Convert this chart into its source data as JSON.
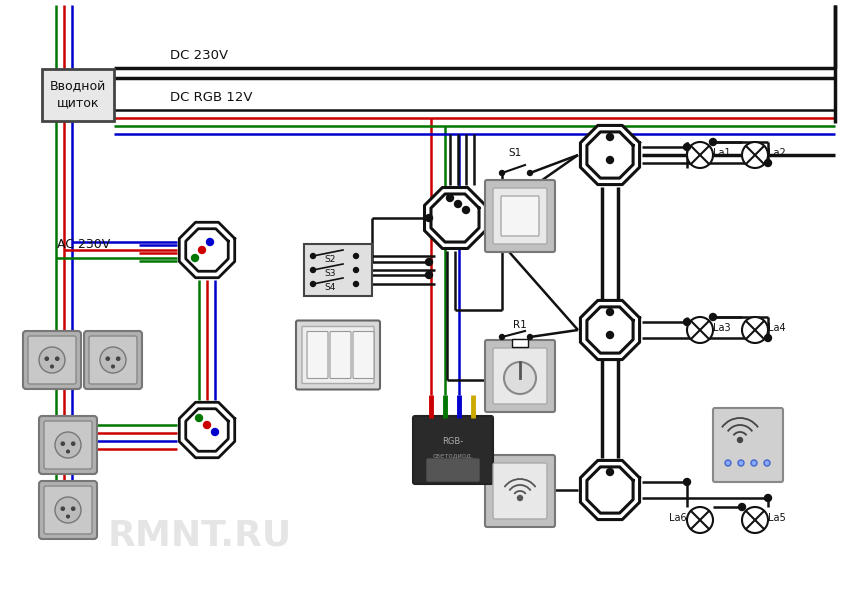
{
  "bg_color": "#ffffff",
  "wire_black": "#111111",
  "wire_red": "#cc0000",
  "wire_blue": "#0000cc",
  "wire_green": "#007700",
  "wire_lw": 1.8,
  "wire_lw_thick": 2.5,
  "label_dc230": "DC 230V",
  "label_rgb": "DC RGB 12V",
  "label_ac230": "AC 230V",
  "label_panel_1": "Вводной",
  "label_panel_2": "щиток",
  "label_s1": "S1",
  "label_r1": "R1",
  "label_s2": "S2",
  "label_s3": "S3",
  "label_s4": "S4",
  "label_la1": "La1",
  "label_la2": "La2",
  "label_la3": "La3",
  "label_la4": "La4",
  "label_la5": "La5",
  "label_la6": "La6",
  "watermark": "RMNT.RU"
}
